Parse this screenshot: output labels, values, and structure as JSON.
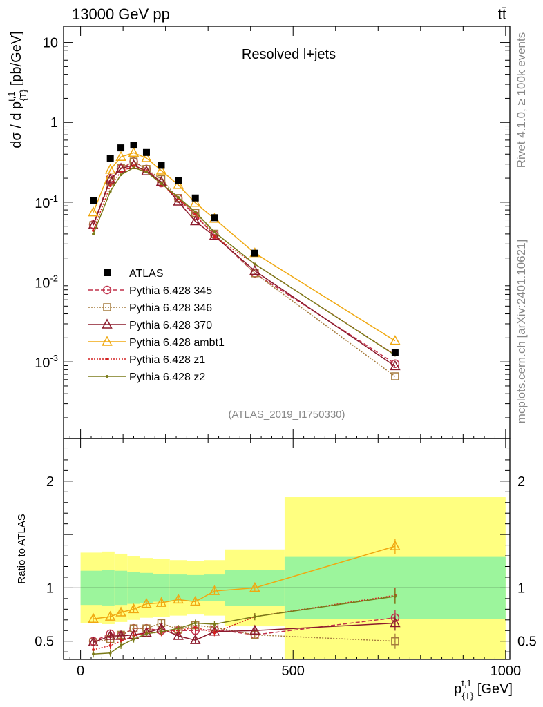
{
  "chart_data": {
    "type": "line",
    "header_left": "13000 GeV pp",
    "header_right": "tt̄",
    "title": "Resolved l+jets",
    "analysis_id": "(ATLAS_2019_I1750330)",
    "side_top": "Rivet 4.1.0, ≥ 100k events",
    "side_bottom": "mcplots.cern.ch [arXiv:2401.10621]",
    "ylabel_main": "dσ / d p^{t,1}_{T} [pb/GeV]",
    "ylabel_ratio": "Ratio to ATLAS",
    "xlabel": "p^{t,1}_{T} [GeV]",
    "xlim": [
      -40,
      1010
    ],
    "ylim_main": [
      0.00011,
      16
    ],
    "ylim_ratio": [
      0.33,
      2.4
    ],
    "x_ticks": [
      "0",
      "500",
      "1000"
    ],
    "y_ticks_main": [
      "10^{-3}",
      "10^{-2}",
      "10^{-1}",
      "1",
      "10"
    ],
    "y_ticks_ratio": [
      "0.5",
      "1",
      "2"
    ],
    "x": [
      30,
      70,
      95,
      125,
      155,
      190,
      230,
      270,
      315,
      410,
      740
    ],
    "bin_edges": [
      0,
      50,
      80,
      110,
      140,
      170,
      210,
      250,
      290,
      340,
      480,
      1000
    ],
    "atlas": [
      0.105,
      0.35,
      0.48,
      0.52,
      0.42,
      0.29,
      0.185,
      0.113,
      0.064,
      0.023,
      0.00132
    ],
    "band_inner": [
      0.16,
      0.165,
      0.16,
      0.15,
      0.14,
      0.13,
      0.125,
      0.12,
      0.125,
      0.17,
      0.29
    ],
    "band_outer": [
      0.33,
      0.34,
      0.32,
      0.3,
      0.28,
      0.27,
      0.26,
      0.25,
      0.26,
      0.36,
      0.85
    ],
    "series": [
      {
        "name": "Pythia 6.428 345",
        "color": "#c0304a",
        "dash": "6,3",
        "marker": "circle",
        "ratio": [
          0.5,
          0.57,
          0.55,
          0.62,
          0.62,
          0.6,
          0.6,
          0.6,
          0.61,
          0.56,
          0.72
        ]
      },
      {
        "name": "Pythia 6.428 346",
        "color": "#a67c3e",
        "dash": "2,2",
        "marker": "square",
        "ratio": [
          0.49,
          0.52,
          0.56,
          0.62,
          0.62,
          0.67,
          0.61,
          0.65,
          0.63,
          0.56,
          0.5
        ]
      },
      {
        "name": "Pythia 6.428 370",
        "color": "#8b1a2c",
        "dash": "",
        "marker": "triangle",
        "ratio": [
          0.49,
          0.55,
          0.55,
          0.56,
          0.58,
          0.62,
          0.55,
          0.51,
          0.59,
          0.6,
          0.67
        ]
      },
      {
        "name": "Pythia 6.428 ambt1",
        "color": "#f0a810",
        "dash": "",
        "marker": "triangle",
        "ratio": [
          0.71,
          0.73,
          0.77,
          0.8,
          0.85,
          0.86,
          0.89,
          0.87,
          0.97,
          1.0,
          1.39
        ]
      },
      {
        "name": "Pythia 6.428 z1",
        "color": "#d42020",
        "dash": "2,2",
        "marker": "dot",
        "ratio": [
          0.42,
          0.46,
          0.5,
          0.55,
          0.58,
          0.58,
          0.6,
          0.63,
          0.58,
          0.73,
          0.93
        ]
      },
      {
        "name": "Pythia 6.428 z2",
        "color": "#7a7a18",
        "dash": "",
        "marker": "dot",
        "ratio": [
          0.38,
          0.39,
          0.46,
          0.52,
          0.57,
          0.59,
          0.62,
          0.67,
          0.66,
          0.73,
          0.92
        ]
      }
    ],
    "legend": {
      "atlas_label": "ATLAS",
      "placement": "middle-left"
    }
  }
}
